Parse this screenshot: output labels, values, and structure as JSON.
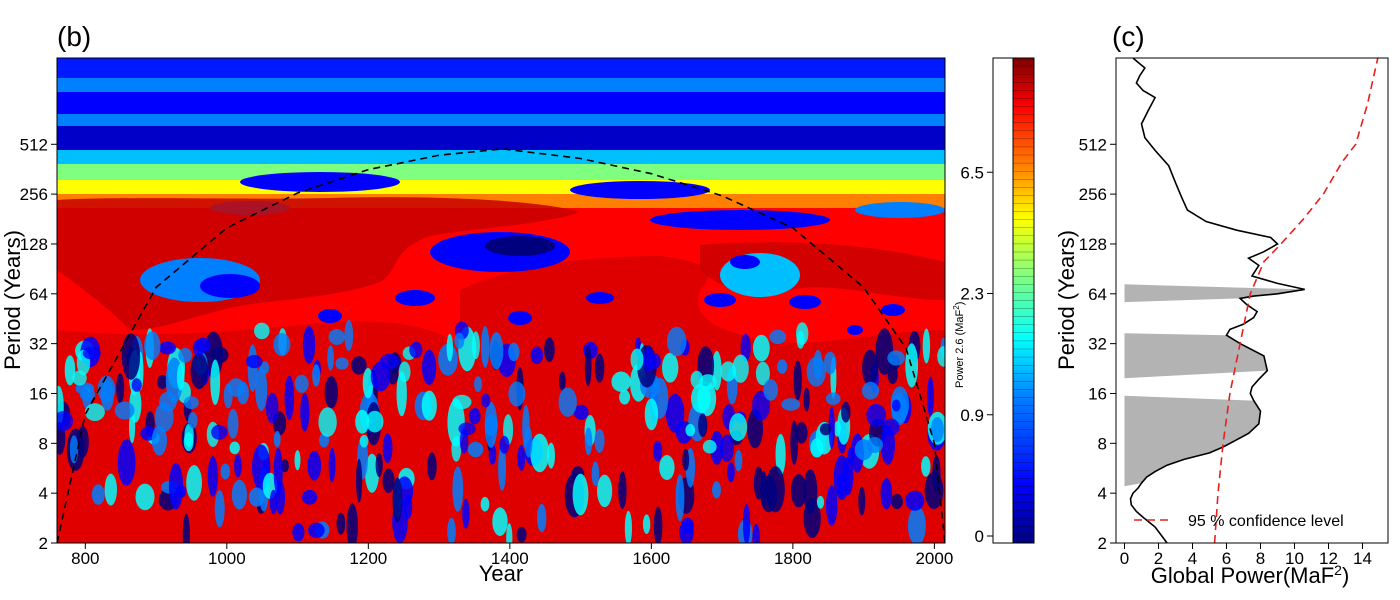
{
  "colors": {
    "jet": [
      "#00007f",
      "#0000ff",
      "#007fff",
      "#00ffff",
      "#7fff7f",
      "#ffff00",
      "#ff7f00",
      "#ff0000",
      "#7f0000"
    ],
    "dashed_red": "#e8201c",
    "shade": "#b3b3b3"
  },
  "chart_data": [
    {
      "panel": "(b)",
      "type": "heatmap",
      "title": "",
      "xlabel": "Year",
      "ylabel": "Period (Years)",
      "xlim": [
        760,
        2015
      ],
      "ylim": [
        2,
        1700
      ],
      "y_scale": "log2",
      "x_ticks": [
        "800",
        "1000",
        "1200",
        "1400",
        "1600",
        "1800",
        "2000"
      ],
      "x_tick_values": [
        800,
        1000,
        1200,
        1400,
        1600,
        1800,
        2000
      ],
      "y_ticks": [
        "2",
        "4",
        "8",
        "16",
        "32",
        "64",
        "128",
        "256",
        "512"
      ],
      "y_tick_values": [
        2,
        4,
        8,
        16,
        32,
        64,
        128,
        256,
        512
      ],
      "cone_of_influence": {
        "style": "dashed black",
        "x": [
          760,
          800,
          900,
          1000,
          1100,
          1200,
          1300,
          1390,
          1500,
          1600,
          1700,
          1800,
          1900,
          1960,
          2000,
          2015
        ],
        "y": [
          2,
          12,
          70,
          160,
          260,
          360,
          440,
          480,
          420,
          340,
          250,
          160,
          70,
          30,
          8,
          2
        ]
      },
      "significance_contours": "solid black",
      "colorbar": {
        "label": "Power 2.6 (MaF",
        "label_sup": "2",
        "label_end": ")",
        "ticks": [
          "0",
          "0.9",
          "2.3",
          "6.5"
        ],
        "tick_fractions": [
          0.0,
          0.25,
          0.5,
          0.75
        ]
      }
    },
    {
      "panel": "(c)",
      "type": "line",
      "title": "",
      "xlabel": "Global Power",
      "xlabel_unit": "(MaF",
      "xlabel_sup": "2",
      "xlabel_end": ")",
      "ylabel": "Period (Years)",
      "xlim": [
        -0.5,
        15.5
      ],
      "ylim": [
        2,
        1700
      ],
      "y_scale": "log2",
      "x_ticks": [
        "0",
        "2",
        "4",
        "6",
        "8",
        "10",
        "12",
        "14"
      ],
      "x_tick_values": [
        0,
        2,
        4,
        6,
        8,
        10,
        12,
        14
      ],
      "y_ticks": [
        "2",
        "4",
        "8",
        "16",
        "32",
        "64",
        "128",
        "256",
        "512"
      ],
      "y_tick_values": [
        2,
        4,
        8,
        16,
        32,
        64,
        128,
        256,
        512
      ],
      "series": [
        {
          "style": "solid black",
          "x": [
            2.5,
            2.2,
            1.8,
            1.2,
            0.7,
            0.4,
            0.35,
            0.5,
            0.8,
            1.0,
            1.3,
            1.8,
            2.5,
            3.5,
            5.0,
            5.8,
            6.5,
            7.3,
            7.9,
            8.0,
            7.6,
            7.4,
            7.5,
            7.9,
            8.4,
            8.2,
            6.8,
            6.0,
            6.2,
            7.0,
            7.6,
            7.8,
            7.2,
            6.8,
            7.6,
            9.0,
            10.6,
            9.0,
            7.5,
            7.9,
            7.3,
            8.2,
            9.0,
            8.6,
            6.6,
            4.8,
            3.7,
            3.4,
            3.0,
            2.6,
            1.8,
            1.2,
            1.0,
            1.4,
            1.8,
            1.1,
            0.7,
            0.9,
            1.2,
            0.8,
            0.5
          ],
          "y": [
            2,
            2.2,
            2.5,
            2.8,
            3.1,
            3.4,
            3.7,
            4.0,
            4.3,
            4.6,
            5.0,
            5.4,
            5.9,
            6.4,
            7.0,
            7.6,
            8.3,
            9.2,
            10.5,
            12.5,
            14.5,
            16.0,
            17.5,
            19.5,
            22.0,
            27.0,
            32.0,
            36.0,
            39.0,
            42.0,
            46.0,
            50.0,
            55.0,
            60.0,
            62.0,
            64.0,
            68.0,
            74.0,
            82.0,
            95.0,
            105.0,
            115.0,
            128.0,
            140.0,
            155.0,
            175.0,
            205.0,
            240.0,
            300.0,
            380.0,
            470.0,
            560.0,
            680.0,
            820.0,
            980.0,
            1080.0,
            1200.0,
            1330.0,
            1480.0,
            1600.0,
            1700.0
          ]
        },
        {
          "style": "dashed red",
          "x": [
            5.3,
            5.5,
            5.8,
            6.2,
            6.8,
            7.4,
            8.2,
            9.2,
            10.5,
            11.7,
            12.8,
            13.6,
            14.3,
            14.9
          ],
          "y": [
            2,
            4,
            8,
            16,
            32,
            64,
            100,
            128,
            180,
            256,
            400,
            512,
            900,
            1700
          ]
        }
      ],
      "shaded_bands": [
        {
          "y_range": [
            4.4,
            15.5
          ]
        },
        {
          "y_range": [
            19.8,
            37.0
          ]
        },
        {
          "y_range": [
            57.0,
            73.0
          ]
        }
      ],
      "legend": {
        "position": "bottom-right",
        "entries": [
          {
            "label": "95 % confidence level",
            "style": "dashed red"
          }
        ]
      }
    }
  ]
}
